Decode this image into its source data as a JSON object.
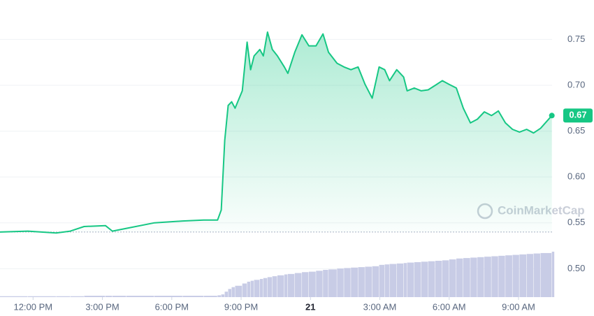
{
  "chart_data": {
    "type": "line",
    "x": [
      10.57,
      11.78,
      13.0,
      13.61,
      14.21,
      15.13,
      15.43,
      16.04,
      17.25,
      18.47,
      19.38,
      19.98,
      20.14,
      20.29,
      20.44,
      20.59,
      20.74,
      21.05,
      21.26,
      21.41,
      21.56,
      21.81,
      21.96,
      22.14,
      22.35,
      22.57,
      22.87,
      23.02,
      23.32,
      23.63,
      23.93,
      24.24,
      24.54,
      24.78,
      25.15,
      25.45,
      25.75,
      26.06,
      26.36,
      26.67,
      26.97,
      27.21,
      27.42,
      27.73,
      28.03,
      28.18,
      28.49,
      28.79,
      29.09,
      29.4,
      29.7,
      30.0,
      30.31,
      30.61,
      30.92,
      31.22,
      31.52,
      31.83,
      32.13,
      32.43,
      32.74,
      33.04,
      33.35,
      33.65,
      33.95,
      34.44
    ],
    "values": [
      0.54,
      0.541,
      0.539,
      0.541,
      0.546,
      0.547,
      0.541,
      0.544,
      0.55,
      0.552,
      0.553,
      0.553,
      0.564,
      0.64,
      0.678,
      0.682,
      0.675,
      0.694,
      0.747,
      0.717,
      0.732,
      0.739,
      0.732,
      0.758,
      0.739,
      0.732,
      0.72,
      0.713,
      0.736,
      0.755,
      0.743,
      0.743,
      0.756,
      0.736,
      0.724,
      0.72,
      0.717,
      0.72,
      0.701,
      0.686,
      0.72,
      0.717,
      0.705,
      0.717,
      0.709,
      0.694,
      0.697,
      0.694,
      0.695,
      0.7,
      0.705,
      0.701,
      0.697,
      0.675,
      0.659,
      0.663,
      0.671,
      0.667,
      0.672,
      0.659,
      0.652,
      0.649,
      0.652,
      0.648,
      0.653,
      0.667
    ],
    "volume": [
      2,
      2,
      2,
      2,
      3,
      3,
      3,
      3,
      3,
      3,
      3,
      4,
      6,
      12,
      18,
      22,
      25,
      30,
      34,
      36,
      38,
      40,
      42,
      44,
      46,
      48,
      50,
      51,
      53,
      55,
      56,
      58,
      60,
      61,
      63,
      64,
      65,
      66,
      67,
      68,
      71,
      72,
      73,
      74,
      75,
      76,
      77,
      78,
      79,
      80,
      81,
      83,
      85,
      86,
      87,
      88,
      89,
      90,
      91,
      92,
      93,
      94,
      95,
      96,
      97,
      100
    ],
    "color": "#16c784",
    "volume_color": "#c8cce6",
    "reference_line": 0.54,
    "current_label": "0.67",
    "watermark": "CoinMarketCap",
    "xlim": [
      10.57,
      34.45
    ],
    "xticks": [
      {
        "value": 12,
        "label": "12:00 PM"
      },
      {
        "value": 15,
        "label": "3:00 PM"
      },
      {
        "value": 18,
        "label": "6:00 PM"
      },
      {
        "value": 21,
        "label": "9:00 PM"
      },
      {
        "value": 24,
        "label": "21"
      },
      {
        "value": 27,
        "label": "3:00 AM"
      },
      {
        "value": 30,
        "label": "6:00 AM"
      },
      {
        "value": 33,
        "label": "9:00 AM"
      }
    ],
    "ylim": [
      0.469,
      0.793
    ],
    "yticks": [
      {
        "value": 0.5,
        "label": "0.50"
      },
      0.55,
      {
        "value": 0.6,
        "label": "0.60"
      },
      0.65,
      {
        "value": 0.7,
        "label": "0.70"
      },
      0.75
    ],
    "y2lim": [
      0,
      100
    ],
    "grid": true
  }
}
